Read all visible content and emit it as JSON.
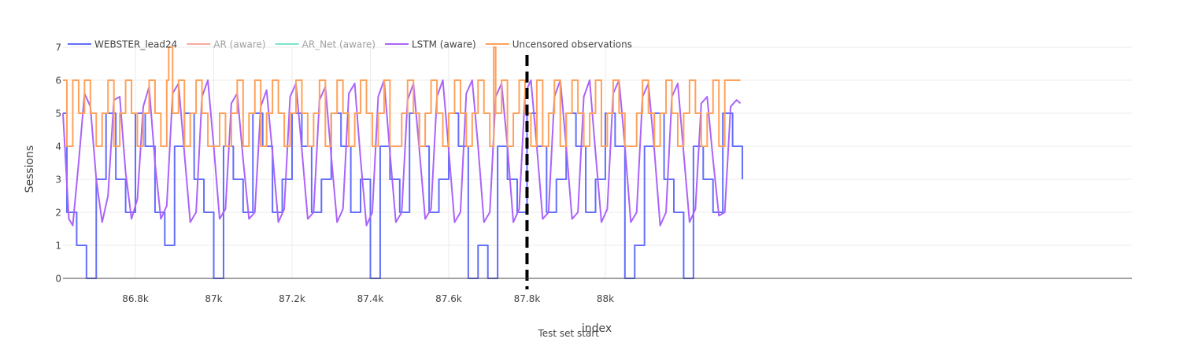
{
  "chart_data": {
    "type": "line",
    "title": "",
    "xlabel": "index",
    "ylabel": "Sessions",
    "xlim": [
      86615,
      89345
    ],
    "ylim": [
      0,
      7
    ],
    "x_ticks": [
      86800,
      87000,
      87200,
      87400,
      87600,
      87800,
      88000
    ],
    "x_tick_labels": [
      "86.8k",
      "87k",
      "87.2k",
      "87.4k",
      "87.6k",
      "87.8k",
      "88k"
    ],
    "y_ticks": [
      0,
      1,
      2,
      3,
      4,
      5,
      6,
      7
    ],
    "y_tick_labels": [
      "0",
      "1",
      "2",
      "3",
      "4",
      "5",
      "6",
      "7"
    ],
    "grid": true,
    "legend_position": "top-left",
    "series": [
      {
        "name": "WEBSTER_lead24",
        "color": "#636efa",
        "visible": true,
        "style": "step",
        "x": [
          86615,
          86625,
          86650,
          86675,
          86700,
          86725,
          86750,
          86775,
          86800,
          86825,
          86850,
          86875,
          86900,
          86925,
          86950,
          86975,
          87000,
          87025,
          87050,
          87075,
          87100,
          87125,
          87150,
          87175,
          87200,
          87225,
          87250,
          87275,
          87300,
          87325,
          87350,
          87375,
          87400,
          87425,
          87450,
          87475,
          87500,
          87525,
          87550,
          87575,
          87600,
          87625,
          87650,
          87675,
          87700,
          87725,
          87750,
          87775,
          87800,
          87825,
          87850,
          87875,
          87900,
          87925,
          87950,
          87975,
          88000,
          88025,
          88050,
          88075,
          88100,
          88125,
          88150,
          88175,
          88200,
          88225,
          88250,
          88275,
          88300,
          88325,
          88350
        ],
        "y": [
          5,
          2,
          1,
          0,
          3,
          5,
          3,
          2,
          5,
          4,
          2,
          1,
          4,
          5,
          3,
          2,
          0,
          4,
          3,
          2,
          5,
          4,
          2,
          3,
          5,
          4,
          2,
          3,
          5,
          4,
          2,
          3,
          0,
          4,
          3,
          2,
          5,
          4,
          2,
          3,
          5,
          4,
          0,
          1,
          0,
          4,
          3,
          2,
          5,
          4,
          2,
          3,
          5,
          4,
          2,
          3,
          5,
          4,
          0,
          1,
          4,
          5,
          3,
          2,
          0,
          4,
          3,
          2,
          5,
          4,
          3
        ]
      },
      {
        "name": "AR (aware)",
        "color": "#ef553b",
        "visible": false,
        "x": [],
        "y": []
      },
      {
        "name": "AR_Net (aware)",
        "color": "#00cc96",
        "visible": false,
        "x": [],
        "y": []
      },
      {
        "name": "LSTM (aware)",
        "color": "#ab63fa",
        "visible": true,
        "style": "line",
        "x": [
          86615,
          86630,
          86640,
          86655,
          86670,
          86685,
          86700,
          86715,
          86730,
          86745,
          86760,
          86775,
          86790,
          86805,
          86820,
          86835,
          86850,
          86865,
          86880,
          86895,
          86910,
          86925,
          86940,
          86955,
          86970,
          86985,
          87000,
          87015,
          87030,
          87045,
          87060,
          87075,
          87090,
          87105,
          87120,
          87135,
          87150,
          87165,
          87180,
          87195,
          87210,
          87225,
          87240,
          87255,
          87270,
          87285,
          87300,
          87315,
          87330,
          87345,
          87360,
          87375,
          87390,
          87405,
          87420,
          87435,
          87450,
          87465,
          87480,
          87495,
          87510,
          87525,
          87540,
          87555,
          87570,
          87585,
          87600,
          87615,
          87630,
          87645,
          87660,
          87675,
          87690,
          87705,
          87720,
          87735,
          87750,
          87765,
          87780,
          87795,
          87810,
          87825,
          87840,
          87855,
          87870,
          87885,
          87900,
          87915,
          87930,
          87945,
          87960,
          87975,
          87990,
          88005,
          88020,
          88035,
          88050,
          88065,
          88080,
          88095,
          88110,
          88125,
          88140,
          88155,
          88170,
          88185,
          88200,
          88215,
          88230,
          88245,
          88260,
          88275,
          88290,
          88305,
          88320,
          88335,
          88345
        ],
        "y": [
          5.0,
          1.8,
          1.6,
          3.5,
          5.6,
          5.2,
          3.0,
          1.7,
          2.5,
          5.4,
          5.5,
          3.2,
          1.8,
          2.4,
          5.2,
          5.8,
          3.5,
          1.8,
          2.2,
          5.6,
          5.9,
          3.8,
          1.7,
          2.0,
          5.5,
          6.0,
          4.0,
          1.8,
          2.1,
          5.3,
          5.6,
          3.6,
          1.8,
          2.0,
          5.2,
          5.7,
          3.8,
          1.7,
          2.1,
          5.5,
          5.9,
          3.9,
          1.8,
          2.0,
          5.4,
          5.8,
          3.7,
          1.7,
          2.1,
          5.6,
          5.9,
          3.6,
          1.6,
          2.0,
          5.5,
          6.0,
          3.8,
          1.7,
          2.0,
          5.4,
          5.9,
          3.9,
          1.8,
          2.1,
          5.5,
          6.0,
          3.9,
          1.7,
          2.0,
          5.6,
          6.0,
          4.0,
          1.7,
          2.0,
          5.5,
          5.9,
          4.0,
          1.7,
          2.1,
          5.6,
          6.0,
          4.0,
          1.8,
          2.0,
          5.5,
          6.0,
          4.0,
          1.8,
          2.0,
          5.5,
          6.0,
          3.8,
          1.7,
          2.1,
          5.6,
          6.0,
          4.0,
          1.7,
          2.0,
          5.5,
          5.9,
          3.9,
          1.6,
          2.0,
          5.5,
          5.9,
          3.8,
          1.7,
          2.1,
          5.3,
          5.5,
          3.6,
          1.9,
          2.0,
          5.2,
          5.4,
          5.3
        ]
      },
      {
        "name": "Uncensored observations",
        "color": "#ffa15a",
        "visible": true,
        "style": "step",
        "x": [
          86615,
          86625,
          86640,
          86655,
          86670,
          86685,
          86700,
          86715,
          86730,
          86745,
          86760,
          86775,
          86790,
          86805,
          86820,
          86835,
          86850,
          86865,
          86880,
          86885,
          86895,
          86910,
          86925,
          86940,
          86955,
          86970,
          86985,
          87000,
          87015,
          87030,
          87045,
          87060,
          87075,
          87090,
          87105,
          87120,
          87135,
          87150,
          87165,
          87180,
          87195,
          87210,
          87225,
          87240,
          87255,
          87270,
          87285,
          87300,
          87315,
          87330,
          87345,
          87360,
          87375,
          87390,
          87405,
          87420,
          87435,
          87450,
          87465,
          87480,
          87495,
          87510,
          87525,
          87540,
          87555,
          87570,
          87585,
          87600,
          87615,
          87630,
          87645,
          87660,
          87675,
          87690,
          87705,
          87715,
          87720,
          87735,
          87750,
          87765,
          87780,
          87795,
          87810,
          87825,
          87840,
          87855,
          87870,
          87885,
          87900,
          87915,
          87930,
          87945,
          87960,
          87975,
          87990,
          88005,
          88020,
          88035,
          88050,
          88065,
          88080,
          88095,
          88110,
          88125,
          88140,
          88155,
          88170,
          88185,
          88200,
          88215,
          88230,
          88245,
          88260,
          88275,
          88290,
          88305,
          88320,
          88335,
          88345
        ],
        "y": [
          6,
          4,
          6,
          5,
          6,
          5,
          4,
          5,
          6,
          4,
          5,
          6,
          5,
          4,
          5,
          6,
          5,
          4,
          6,
          7,
          5,
          6,
          4,
          5,
          6,
          5,
          4,
          4,
          5,
          4,
          5,
          6,
          4,
          5,
          6,
          4,
          5,
          6,
          5,
          4,
          5,
          6,
          5,
          4,
          5,
          6,
          4,
          5,
          6,
          5,
          4,
          5,
          6,
          5,
          4,
          5,
          6,
          4,
          4,
          5,
          6,
          5,
          4,
          5,
          6,
          5,
          4,
          5,
          6,
          5,
          4,
          5,
          6,
          5,
          4,
          7,
          5,
          6,
          4,
          5,
          6,
          5,
          4,
          6,
          4,
          5,
          6,
          4,
          5,
          6,
          5,
          4,
          5,
          6,
          4,
          5,
          6,
          5,
          4,
          4,
          5,
          6,
          5,
          4,
          5,
          6,
          5,
          4,
          5,
          6,
          5,
          4,
          5,
          6,
          4,
          6,
          6,
          6,
          6
        ]
      }
    ],
    "annotations": [
      {
        "type": "vline",
        "x": 87800,
        "style": "dashed",
        "color": "#000000",
        "label": "Test set start"
      }
    ]
  }
}
